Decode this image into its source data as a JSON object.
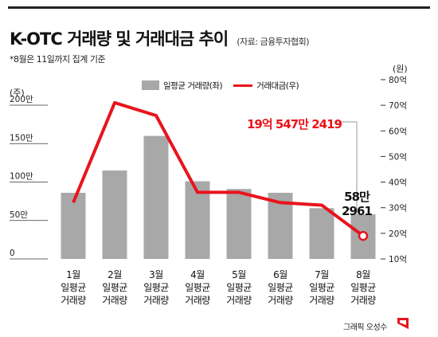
{
  "header": {
    "title": "K-OTC 거래량 및 거래대금 추이",
    "source": "(자료: 금융투자협회)",
    "note": "*8월은 11일까지 집계 기준"
  },
  "legend": {
    "bar_label": "일평균 거래량(좌)",
    "line_label": "거래대금(우)"
  },
  "annotations": {
    "line_value": "19억 547만 2419",
    "bar_value_line1": "58만",
    "bar_value_line2": "2961"
  },
  "footer": {
    "credit": "그래픽 오성수"
  },
  "colors": {
    "bar": "#a8a8a8",
    "line": "#e8141c"
  },
  "chart_data": {
    "type": "bar",
    "categories": [
      "1월 일평균 거래량",
      "2월 일평균 거래량",
      "3월 일평균 거래량",
      "4월 일평균 거래량",
      "5월 일평균 거래량",
      "6월 일평균 거래량",
      "7월 일평균 거래량",
      "8월 일평균 거래량"
    ],
    "category_lines": [
      [
        "1월",
        "일평균",
        "거래량"
      ],
      [
        "2월",
        "일평균",
        "거래량"
      ],
      [
        "3월",
        "일평균",
        "거래량"
      ],
      [
        "4월",
        "일평균",
        "거래량"
      ],
      [
        "5월",
        "일평균",
        "거래량"
      ],
      [
        "6월",
        "일평균",
        "거래량"
      ],
      [
        "7월",
        "일평균",
        "거래량"
      ],
      [
        "8월",
        "일평균",
        "거래량"
      ]
    ],
    "series": [
      {
        "name": "일평균 거래량(좌)",
        "type": "bar",
        "axis": "left",
        "values": [
          86,
          115,
          160,
          101,
          91,
          86,
          66,
          58
        ]
      },
      {
        "name": "거래대금(우)",
        "type": "line",
        "axis": "right",
        "values": [
          32,
          71,
          66,
          36,
          36,
          32,
          31,
          19
        ]
      }
    ],
    "y_left": {
      "label": "(주)",
      "ylim": [
        0,
        200
      ],
      "ticks": [
        0,
        50,
        100,
        150,
        200
      ],
      "tick_labels": [
        "0",
        "50만",
        "100만",
        "150만",
        "200만"
      ]
    },
    "y_right": {
      "label": "(원)",
      "ylim": [
        10,
        80
      ],
      "ticks": [
        10,
        20,
        30,
        40,
        50,
        60,
        70,
        80
      ],
      "tick_labels": [
        "10억",
        "20억",
        "30억",
        "40억",
        "50억",
        "60억",
        "70억",
        "80억"
      ]
    },
    "grid": false,
    "legend_position": "top-center"
  }
}
